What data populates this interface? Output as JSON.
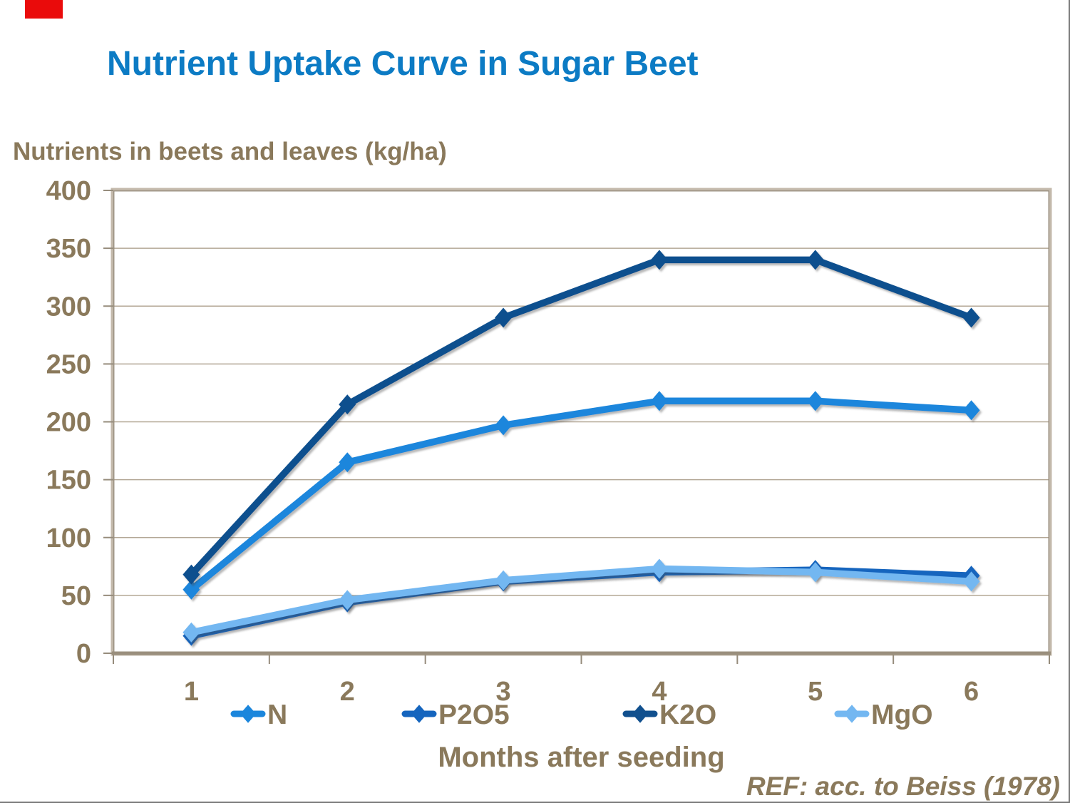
{
  "header": {
    "title": "Nutrient Uptake Curve in Sugar Beet",
    "title_color": "#0C7BC4",
    "red_bar_color": "#EA0B0B"
  },
  "chart_data": {
    "type": "line",
    "title": "Nutrient Uptake Curve in Sugar Beet",
    "ylabel": "Nutrients in beets and leaves (kg/ha)",
    "xlabel": "Months after seeding",
    "categories": [
      "1",
      "2",
      "3",
      "4",
      "5",
      "6"
    ],
    "series": [
      {
        "name": "N",
        "color": "#1B86DC",
        "values": [
          55,
          165,
          197,
          218,
          218,
          210
        ]
      },
      {
        "name": "P2O5",
        "color": "#1565BE",
        "values": [
          15,
          44,
          62,
          70,
          72,
          67
        ]
      },
      {
        "name": "K2O",
        "color": "#11508E",
        "values": [
          68,
          215,
          290,
          340,
          340,
          290
        ]
      },
      {
        "name": "MgO",
        "color": "#73B7F1",
        "values": [
          18,
          46,
          63,
          73,
          70,
          62
        ]
      }
    ],
    "ylim": [
      0,
      400
    ],
    "yticks": [
      0,
      50,
      100,
      150,
      200,
      250,
      300,
      350,
      400
    ],
    "grid": true,
    "legend_position": "bottom",
    "style": {
      "text_color": "#8A795B",
      "grid_color": "#B3A795",
      "border_light": "#C3B9AB",
      "border_dark": "#968C7C",
      "axis_color": "#9A8F7D",
      "marker": "diamond"
    }
  },
  "footer": {
    "ref": "REF: acc. to Beiss (1978)"
  }
}
